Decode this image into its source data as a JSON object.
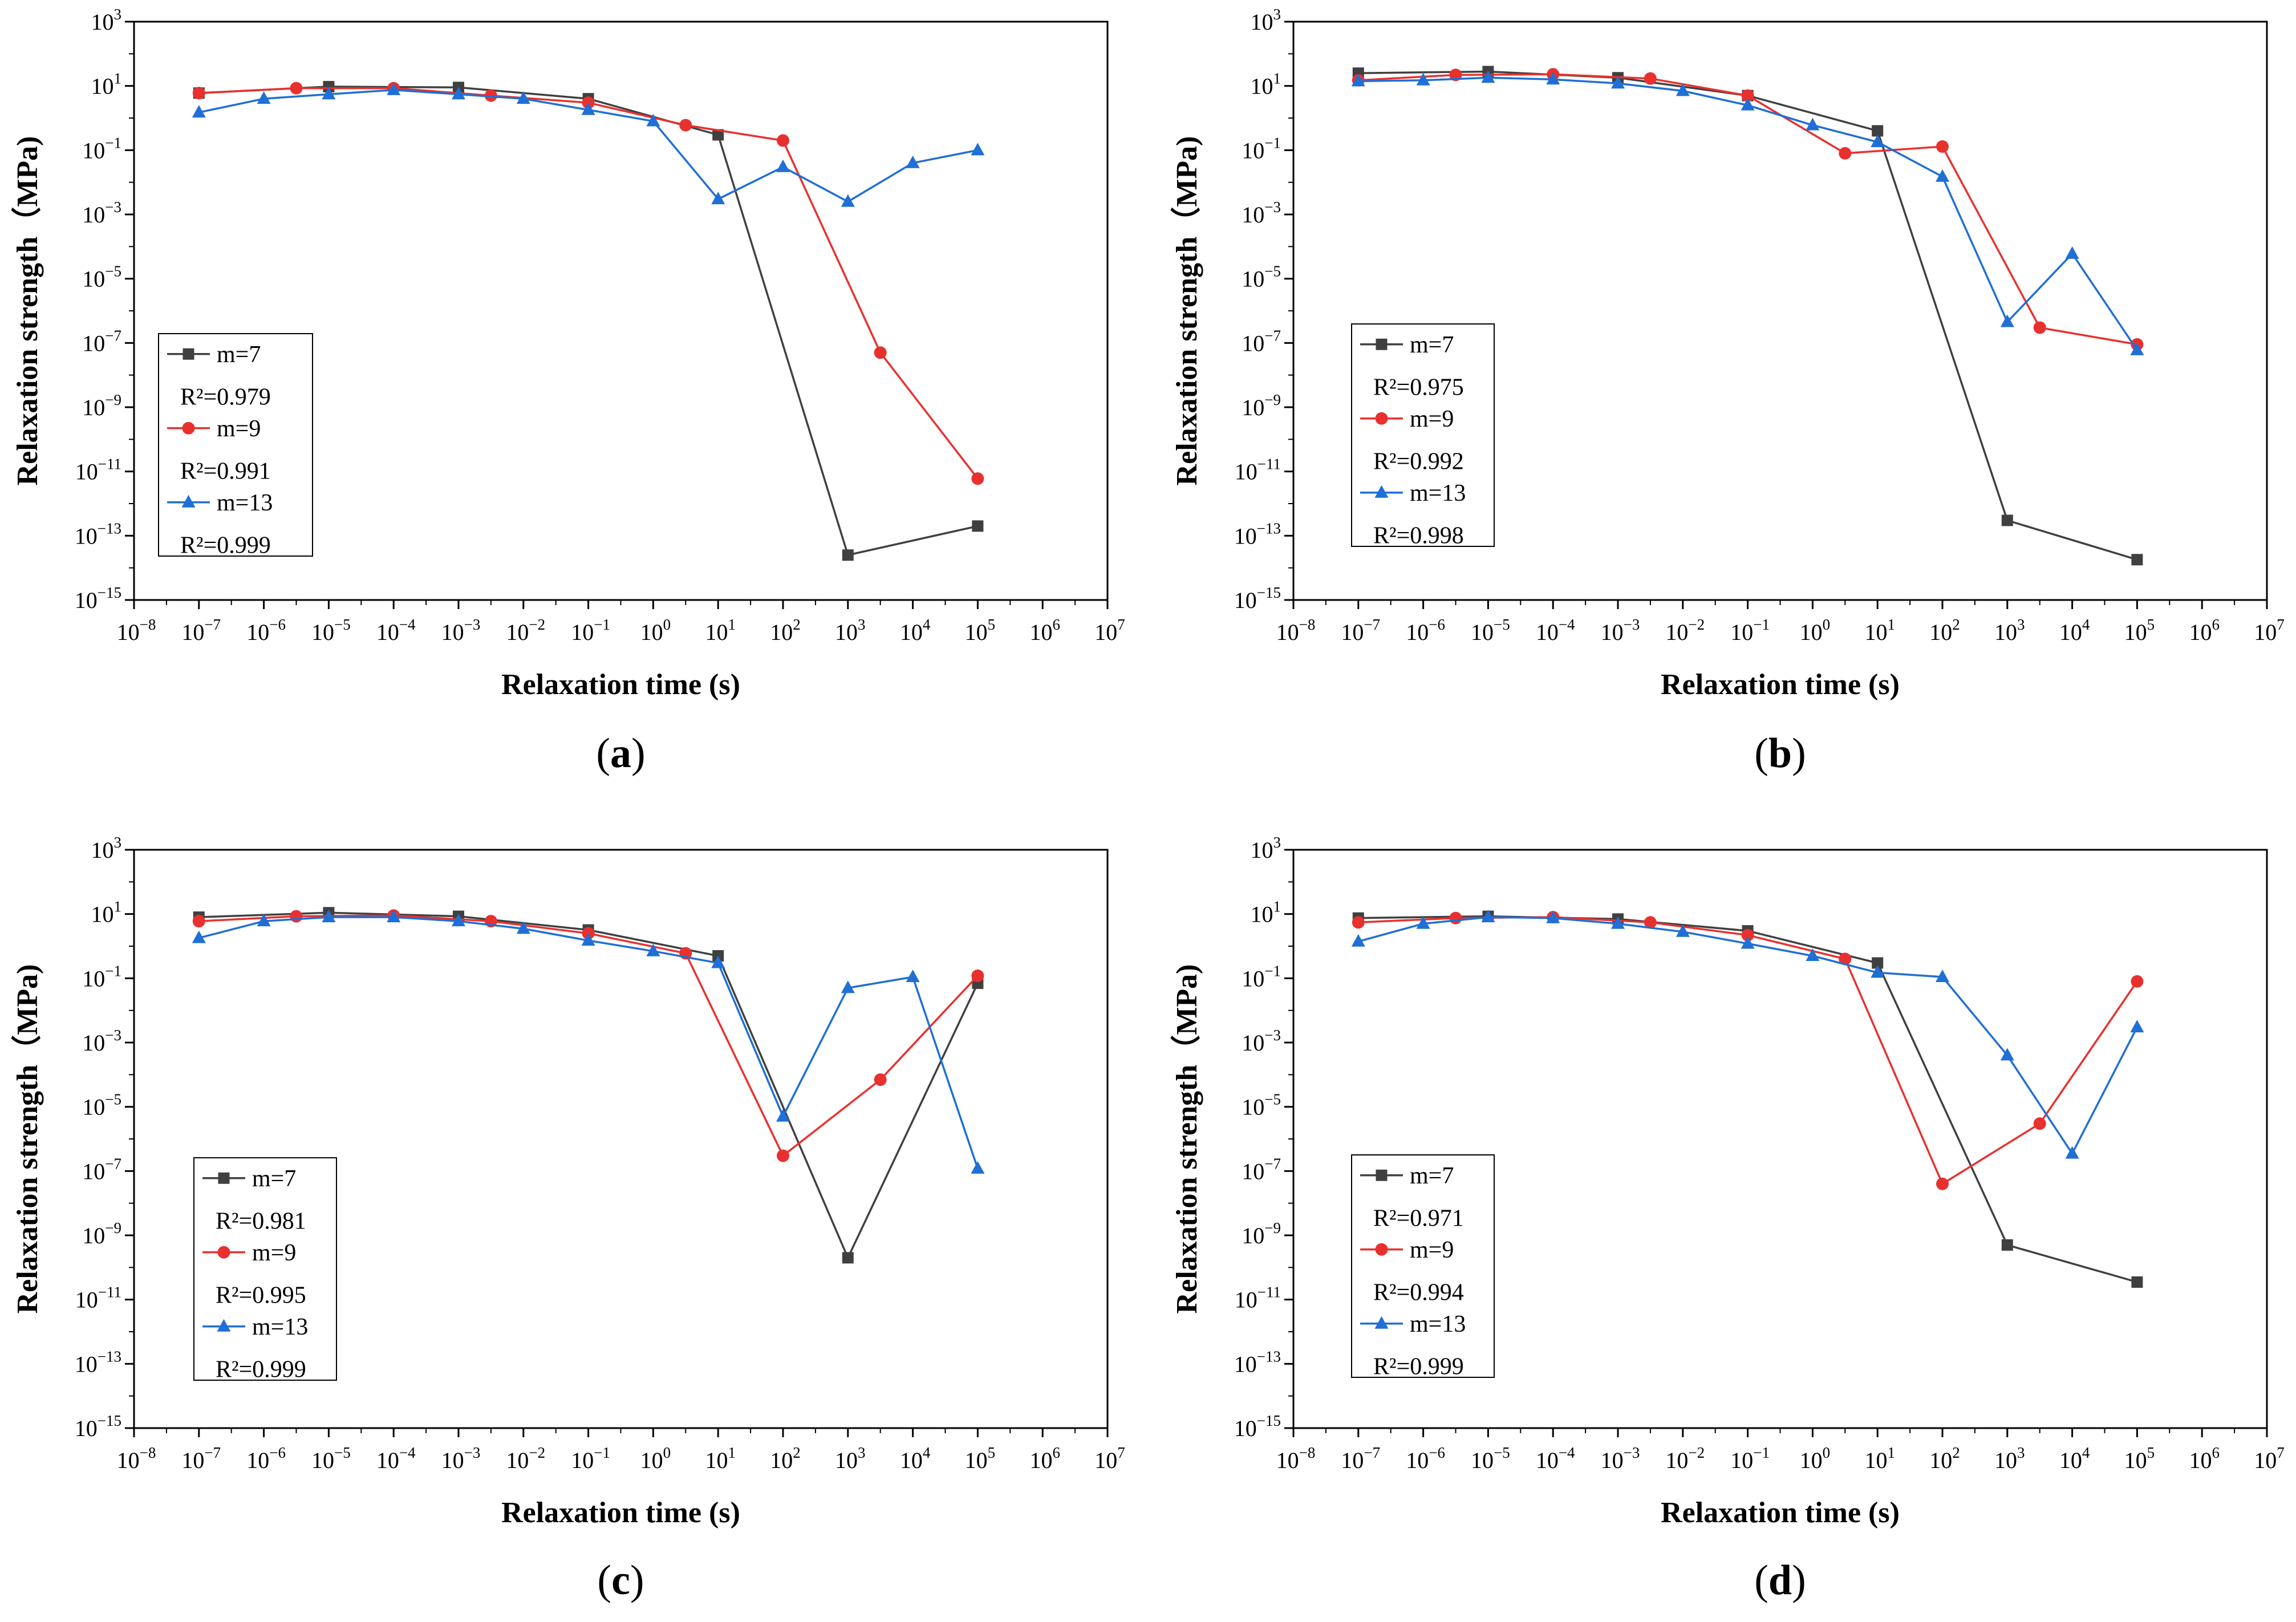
{
  "chart_data": [
    {
      "type": "line",
      "panel_label": "a",
      "xlabel": "Relaxation time (s)",
      "ylabel": "Relaxation strength（MPa)",
      "x_log": true,
      "y_log": true,
      "xlim_exp": [
        -8,
        7
      ],
      "ylim_exp": [
        -15,
        3
      ],
      "x_tick_exps": [
        -8,
        -7,
        -6,
        -5,
        -4,
        -3,
        -2,
        -1,
        0,
        1,
        2,
        3,
        4,
        5,
        6,
        7
      ],
      "y_tick_exps": [
        -15,
        -13,
        -11,
        -9,
        -7,
        -5,
        -3,
        -1,
        1,
        3
      ],
      "legend_position": "lower-left",
      "series": [
        {
          "name": "m=7",
          "r2": "R²=0.979",
          "color": "#404040",
          "marker": "square",
          "x": [
            1e-07,
            1e-05,
            0.001,
            0.1,
            10,
            1000,
            100000
          ],
          "y": [
            6,
            9.5,
            9,
            4,
            0.3,
            2.5e-14,
            2e-13
          ]
        },
        {
          "name": "m=9",
          "r2": "R²=0.991",
          "color": "#e8312f",
          "marker": "circle",
          "x": [
            1e-07,
            3.16e-06,
            0.0001,
            0.00316,
            0.1,
            3.16,
            100,
            3162,
            100000
          ],
          "y": [
            6,
            8.5,
            8.5,
            5,
            3,
            0.6,
            0.2,
            5e-08,
            6e-12
          ]
        },
        {
          "name": "m=13",
          "r2": "R²=0.999",
          "color": "#1f6fd6",
          "marker": "triangle",
          "x": [
            1e-07,
            1e-06,
            1e-05,
            0.0001,
            0.001,
            0.01,
            0.1,
            1,
            10,
            100,
            1000,
            10000,
            100000
          ],
          "y": [
            1.5,
            4,
            5.5,
            7.5,
            5.5,
            4,
            1.8,
            0.8,
            0.003,
            0.03,
            0.0025,
            0.04,
            0.1
          ]
        }
      ]
    },
    {
      "type": "line",
      "panel_label": "b",
      "xlabel": "Relaxation time (s)",
      "ylabel": "Relaxation strength（MPa)",
      "x_log": true,
      "y_log": true,
      "xlim_exp": [
        -8,
        7
      ],
      "ylim_exp": [
        -15,
        3
      ],
      "x_tick_exps": [
        -8,
        -7,
        -6,
        -5,
        -4,
        -3,
        -2,
        -1,
        0,
        1,
        2,
        3,
        4,
        5,
        6,
        7
      ],
      "y_tick_exps": [
        -15,
        -13,
        -11,
        -9,
        -7,
        -5,
        -3,
        -1,
        1,
        3
      ],
      "legend_position": "lower-left",
      "series": [
        {
          "name": "m=7",
          "r2": "R²=0.975",
          "color": "#404040",
          "marker": "square",
          "x": [
            1e-07,
            1e-05,
            0.001,
            0.1,
            10,
            1000,
            100000
          ],
          "y": [
            25,
            28,
            18,
            5,
            0.4,
            3e-13,
            1.8e-14
          ]
        },
        {
          "name": "m=9",
          "r2": "R²=0.992",
          "color": "#e8312f",
          "marker": "circle",
          "x": [
            1e-07,
            3.16e-06,
            0.0001,
            0.00316,
            0.1,
            3.16,
            100,
            3162,
            100000
          ],
          "y": [
            15,
            22,
            23,
            17,
            5,
            0.08,
            0.13,
            3e-07,
            9e-08
          ]
        },
        {
          "name": "m=13",
          "r2": "R²=0.998",
          "color": "#1f6fd6",
          "marker": "triangle",
          "x": [
            1e-07,
            1e-06,
            1e-05,
            0.0001,
            0.001,
            0.01,
            0.1,
            1,
            10,
            100,
            1000,
            10000,
            100000
          ],
          "y": [
            14,
            15,
            18,
            16,
            12,
            7,
            2.5,
            0.6,
            0.18,
            0.015,
            4.5e-07,
            6e-05,
            6e-08
          ]
        }
      ]
    },
    {
      "type": "line",
      "panel_label": "c",
      "xlabel": "Relaxation time (s)",
      "ylabel": "Relaxation strength（MPa)",
      "x_log": true,
      "y_log": true,
      "xlim_exp": [
        -8,
        7
      ],
      "ylim_exp": [
        -15,
        3
      ],
      "x_tick_exps": [
        -8,
        -7,
        -6,
        -5,
        -4,
        -3,
        -2,
        -1,
        0,
        1,
        2,
        3,
        4,
        5,
        6,
        7
      ],
      "y_tick_exps": [
        -15,
        -13,
        -11,
        -9,
        -7,
        -5,
        -3,
        -1,
        1,
        3
      ],
      "legend_position": "lower-left",
      "series": [
        {
          "name": "m=7",
          "r2": "R²=0.981",
          "color": "#404040",
          "marker": "square",
          "x": [
            1e-07,
            1e-05,
            0.001,
            0.1,
            10,
            1000,
            100000
          ],
          "y": [
            8,
            11,
            8.5,
            3.2,
            0.5,
            2e-10,
            0.07
          ]
        },
        {
          "name": "m=9",
          "r2": "R²=0.995",
          "color": "#e8312f",
          "marker": "circle",
          "x": [
            1e-07,
            3.16e-06,
            0.0001,
            0.00316,
            0.1,
            3.16,
            100,
            3162,
            100000
          ],
          "y": [
            6,
            8.5,
            9,
            6,
            2.5,
            0.6,
            3e-07,
            7e-05,
            0.12
          ]
        },
        {
          "name": "m=13",
          "r2": "R²=0.999",
          "color": "#1f6fd6",
          "marker": "triangle",
          "x": [
            1e-07,
            1e-06,
            1e-05,
            0.0001,
            0.001,
            0.01,
            0.1,
            1,
            10,
            100,
            1000,
            10000,
            100000
          ],
          "y": [
            1.8,
            6,
            8,
            8,
            6,
            3.5,
            1.5,
            0.7,
            0.3,
            5e-06,
            0.05,
            0.11,
            1.2e-07
          ]
        }
      ]
    },
    {
      "type": "line",
      "panel_label": "d",
      "xlabel": "Relaxation time (s)",
      "ylabel": "Relaxation strength（MPa)",
      "x_log": true,
      "y_log": true,
      "xlim_exp": [
        -8,
        7
      ],
      "ylim_exp": [
        -15,
        3
      ],
      "x_tick_exps": [
        -8,
        -7,
        -6,
        -5,
        -4,
        -3,
        -2,
        -1,
        0,
        1,
        2,
        3,
        4,
        5,
        6,
        7
      ],
      "y_tick_exps": [
        -15,
        -13,
        -11,
        -9,
        -7,
        -5,
        -3,
        -1,
        1,
        3
      ],
      "legend_position": "lower-left",
      "series": [
        {
          "name": "m=7",
          "r2": "R²=0.971",
          "color": "#404040",
          "marker": "square",
          "x": [
            1e-07,
            1e-05,
            0.001,
            0.1,
            10,
            1000,
            100000
          ],
          "y": [
            7.5,
            8.5,
            7,
            3,
            0.3,
            5e-10,
            3.5e-11
          ]
        },
        {
          "name": "m=9",
          "r2": "R²=0.994",
          "color": "#e8312f",
          "marker": "circle",
          "x": [
            1e-07,
            3.16e-06,
            0.0001,
            0.00316,
            0.1,
            3.16,
            100,
            3162,
            100000
          ],
          "y": [
            5.5,
            7.5,
            8,
            5.5,
            2.2,
            0.4,
            4e-08,
            3e-06,
            0.08
          ]
        },
        {
          "name": "m=13",
          "r2": "R²=0.999",
          "color": "#1f6fd6",
          "marker": "triangle",
          "x": [
            1e-07,
            1e-06,
            1e-05,
            0.0001,
            0.001,
            0.01,
            0.1,
            1,
            10,
            100,
            1000,
            10000,
            100000
          ],
          "y": [
            1.4,
            5,
            8,
            7.5,
            5,
            2.8,
            1.2,
            0.5,
            0.15,
            0.11,
            0.0004,
            3.5e-07,
            0.003
          ]
        }
      ]
    }
  ]
}
